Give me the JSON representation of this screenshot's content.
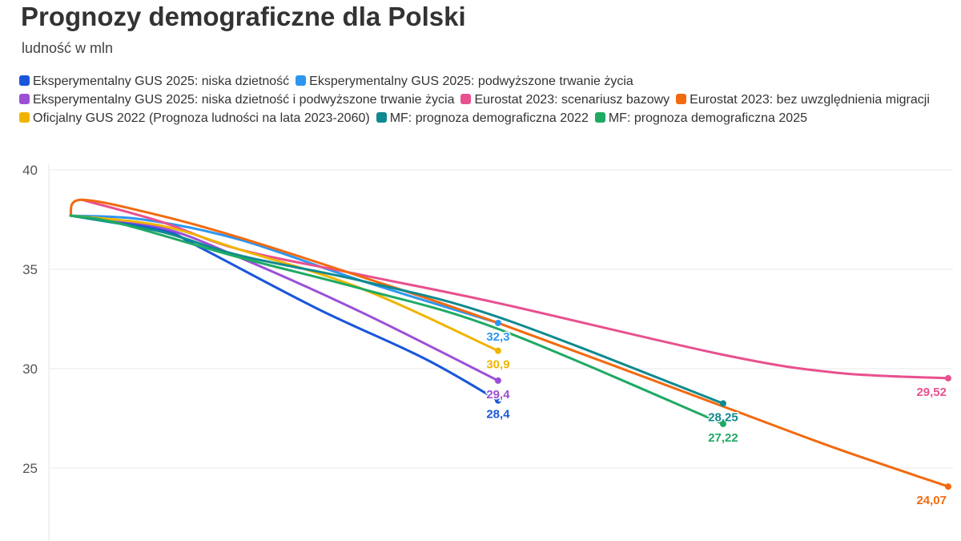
{
  "title": "Prognozy demograficzne dla Polski",
  "subtitle": "ludność w mln",
  "chart_data": {
    "type": "line",
    "title": "Prognozy demograficzne dla Polski",
    "subtitle": "ludność w mln",
    "xlabel": "",
    "ylabel": "",
    "xlim": [
      2022,
      2100
    ],
    "ylim": [
      21.3,
      40
    ],
    "yticks": [
      25,
      30,
      35,
      40
    ],
    "grid": true,
    "legend_position": "top",
    "series": [
      {
        "name": "Eksperymentalny GUS 2025: niska dzietność",
        "color": "#1a56db",
        "label": "28,4",
        "x": [
          2022,
          2030,
          2033.5,
          2044,
          2053.5,
          2060
        ],
        "y": [
          37.7,
          37.0,
          36.1,
          33.0,
          30.5,
          28.4
        ]
      },
      {
        "name": "Eksperymentalny GUS 2025: podwyższone trwanie życia",
        "color": "#2e96f0",
        "label": "32,3",
        "x": [
          2022,
          2028.5,
          2037,
          2048,
          2060
        ],
        "y": [
          37.7,
          37.5,
          36.5,
          34.4,
          32.3
        ]
      },
      {
        "name": "Eksperymentalny GUS 2025: niska dzietność i podwyższone trwanie życia",
        "color": "#9b4fd6",
        "label": "29,4",
        "x": [
          2022,
          2030,
          2037,
          2048,
          2060
        ],
        "y": [
          37.7,
          37.1,
          35.6,
          32.8,
          29.4
        ]
      },
      {
        "name": "Eurostat 2023: scenariusz bazowy",
        "color": "#e8508f",
        "label": "29,52",
        "x": [
          2023,
          2030,
          2037,
          2048,
          2060,
          2080,
          2090,
          2100
        ],
        "y": [
          38.5,
          37.4,
          36.0,
          34.7,
          33.3,
          30.7,
          29.8,
          29.52
        ]
      },
      {
        "name": "Eurostat 2023: bez uwzględnienia migracji",
        "color": "#f26a10",
        "label": "24,07",
        "x": [
          2022,
          2023,
          2030,
          2037,
          2048,
          2060,
          2080,
          2090,
          2100
        ],
        "y": [
          37.7,
          38.5,
          37.7,
          36.6,
          34.6,
          32.3,
          28.1,
          26.0,
          24.07
        ]
      },
      {
        "name": "Oficjalny GUS 2022 (Prognoza ludności na lata 2023-2060)",
        "color": "#f0b400",
        "label": "30,9",
        "x": [
          2022,
          2030,
          2037,
          2048,
          2060
        ],
        "y": [
          37.7,
          37.2,
          36.0,
          34.0,
          30.9
        ]
      },
      {
        "name": "MF: prognoza demograficzna 2022",
        "color": "#0f8a8f",
        "label": "28,25",
        "x": [
          2022,
          2030,
          2037,
          2048,
          2060,
          2080
        ],
        "y": [
          37.7,
          36.9,
          35.7,
          34.4,
          32.6,
          28.25
        ]
      },
      {
        "name": "MF: prognoza demograficzna 2025",
        "color": "#1faa64",
        "label": "27,22",
        "x": [
          2022,
          2026.4,
          2037,
          2048,
          2060,
          2080
        ],
        "y": [
          37.7,
          37.3,
          35.6,
          34.0,
          32.0,
          27.22
        ]
      }
    ]
  }
}
